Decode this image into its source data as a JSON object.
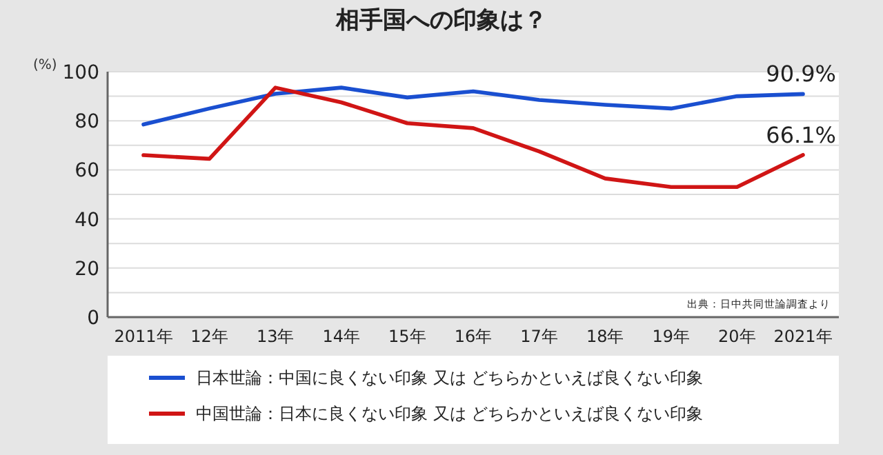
{
  "chart_data": {
    "type": "line",
    "title": "相手国への印象は？",
    "ylabel": "(%)",
    "categories": [
      "2011年",
      "12年",
      "13年",
      "14年",
      "15年",
      "16年",
      "17年",
      "18年",
      "19年",
      "20年",
      "2021年"
    ],
    "series": [
      {
        "name": "日本世論：中国に良くない印象 又は どちらかといえば良くない印象",
        "color": "#1a4fd0",
        "values": [
          78.5,
          85,
          91,
          93.5,
          89.5,
          92,
          88.5,
          86.5,
          85,
          90,
          90.9
        ],
        "value_labels": [
          null,
          null,
          null,
          null,
          null,
          null,
          null,
          null,
          null,
          null,
          "90.9%"
        ]
      },
      {
        "name": "中国世論：日本に良くない印象 又は どちらかといえば良くない印象",
        "color": "#d01515",
        "values": [
          66,
          64.5,
          93.5,
          87.5,
          79,
          77,
          67.5,
          56.5,
          53,
          53,
          66.1
        ],
        "value_labels": [
          null,
          null,
          null,
          null,
          null,
          null,
          null,
          null,
          null,
          null,
          "66.1%"
        ]
      }
    ],
    "ylim": [
      0,
      100
    ],
    "yticks": [
      0,
      {
        "value": 10,
        "label": null
      },
      20,
      {
        "value": 30,
        "label": null
      },
      40,
      {
        "value": 50,
        "label": null
      },
      60,
      {
        "value": 70,
        "label": null
      },
      80,
      {
        "value": 90,
        "label": null
      },
      100
    ],
    "grid": "y",
    "legend": "bottom",
    "marker": "none",
    "line_style": "solid",
    "annotations": [
      "出典：日中共同世論調査より"
    ]
  }
}
